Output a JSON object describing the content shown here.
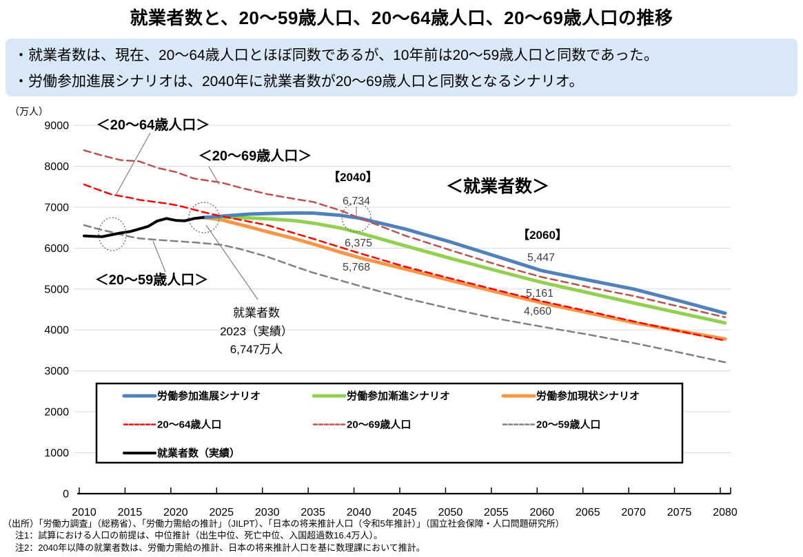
{
  "title": "就業者数と、20～59歳人口、20～64歳人口、20～69歳人口の推移",
  "callout": {
    "bullet1": "・就業者数は、現在、20～64歳人口とほぼ同数であるが、10年前は20～59歳人口と同数であった。",
    "bullet2": "・労働参加進展シナリオは、2040年に就業者数が20～69歳人口と同数となるシナリオ。"
  },
  "chart_data": {
    "type": "line",
    "unit_label": "（万人）",
    "ylim": [
      0,
      9000
    ],
    "ytick_step": 1000,
    "x_ticks": [
      2010,
      2015,
      2020,
      2025,
      2030,
      2035,
      2040,
      2045,
      2050,
      2055,
      2060,
      2065,
      2070,
      2075,
      2080
    ],
    "grid": true,
    "series": [
      {
        "id": "pop-20-59",
        "name": "20～59歳人口",
        "color": "#808080",
        "dash": true,
        "width": 2.5,
        "points": [
          [
            2010,
            6560
          ],
          [
            2011,
            6500
          ],
          [
            2012,
            6440
          ],
          [
            2013,
            6390
          ],
          [
            2014,
            6330
          ],
          [
            2015,
            6280
          ],
          [
            2016,
            6240
          ],
          [
            2017,
            6220
          ],
          [
            2018,
            6200
          ],
          [
            2019,
            6185
          ],
          [
            2020,
            6170
          ],
          [
            2022,
            6140
          ],
          [
            2025,
            6080
          ],
          [
            2027,
            5980
          ],
          [
            2030,
            5790
          ],
          [
            2033,
            5550
          ],
          [
            2035,
            5400
          ],
          [
            2040,
            5080
          ],
          [
            2045,
            4780
          ],
          [
            2050,
            4520
          ],
          [
            2055,
            4280
          ],
          [
            2060,
            4080
          ],
          [
            2065,
            3890
          ],
          [
            2070,
            3680
          ],
          [
            2075,
            3450
          ],
          [
            2080,
            3210
          ]
        ]
      },
      {
        "id": "scenario-genjo",
        "name": "労働参加現状シナリオ",
        "color": "#F79646",
        "dash": false,
        "width": 5,
        "points": [
          [
            2023,
            6747
          ],
          [
            2025,
            6690
          ],
          [
            2028,
            6520
          ],
          [
            2030,
            6400
          ],
          [
            2033,
            6230
          ],
          [
            2035,
            6100
          ],
          [
            2038,
            5900
          ],
          [
            2040,
            5768
          ],
          [
            2045,
            5490
          ],
          [
            2050,
            5210
          ],
          [
            2055,
            4930
          ],
          [
            2060,
            4660
          ],
          [
            2065,
            4420
          ],
          [
            2070,
            4180
          ],
          [
            2075,
            3975
          ],
          [
            2080,
            3780
          ]
        ]
      },
      {
        "id": "scenario-zenshin",
        "name": "労働参加漸進シナリオ",
        "color": "#92D050",
        "dash": false,
        "width": 5,
        "points": [
          [
            2023,
            6747
          ],
          [
            2025,
            6755
          ],
          [
            2028,
            6735
          ],
          [
            2030,
            6715
          ],
          [
            2033,
            6670
          ],
          [
            2035,
            6610
          ],
          [
            2038,
            6490
          ],
          [
            2040,
            6375
          ],
          [
            2045,
            6060
          ],
          [
            2050,
            5750
          ],
          [
            2055,
            5450
          ],
          [
            2060,
            5161
          ],
          [
            2065,
            4910
          ],
          [
            2070,
            4660
          ],
          [
            2075,
            4415
          ],
          [
            2080,
            4170
          ]
        ]
      },
      {
        "id": "scenario-shinten",
        "name": "労働参加進展シナリオ",
        "color": "#4F81BD",
        "dash": false,
        "width": 5,
        "points": [
          [
            2023,
            6747
          ],
          [
            2025,
            6780
          ],
          [
            2028,
            6830
          ],
          [
            2030,
            6845
          ],
          [
            2033,
            6860
          ],
          [
            2035,
            6855
          ],
          [
            2038,
            6800
          ],
          [
            2040,
            6734
          ],
          [
            2045,
            6470
          ],
          [
            2050,
            6150
          ],
          [
            2055,
            5800
          ],
          [
            2060,
            5447
          ],
          [
            2065,
            5220
          ],
          [
            2070,
            5000
          ],
          [
            2075,
            4710
          ],
          [
            2080,
            4410
          ]
        ]
      },
      {
        "id": "pop-20-64",
        "name": "20～64歳人口",
        "color": "#FF0000",
        "dash": true,
        "width": 2.5,
        "points": [
          [
            2010,
            7555
          ],
          [
            2011,
            7470
          ],
          [
            2012,
            7390
          ],
          [
            2013,
            7310
          ],
          [
            2014,
            7270
          ],
          [
            2015,
            7230
          ],
          [
            2016,
            7180
          ],
          [
            2017,
            7150
          ],
          [
            2018,
            7120
          ],
          [
            2019,
            7090
          ],
          [
            2020,
            7050
          ],
          [
            2021,
            7000
          ],
          [
            2022,
            6940
          ],
          [
            2023,
            6880
          ],
          [
            2025,
            6780
          ],
          [
            2030,
            6560
          ],
          [
            2035,
            6230
          ],
          [
            2040,
            5880
          ],
          [
            2045,
            5550
          ],
          [
            2050,
            5260
          ],
          [
            2055,
            4980
          ],
          [
            2060,
            4700
          ],
          [
            2065,
            4460
          ],
          [
            2070,
            4210
          ],
          [
            2075,
            3970
          ],
          [
            2080,
            3740
          ]
        ]
      },
      {
        "id": "pop-20-69",
        "name": "20～69歳人口",
        "color": "#C0504D",
        "dash": true,
        "width": 2.5,
        "points": [
          [
            2010,
            8390
          ],
          [
            2012,
            8260
          ],
          [
            2014,
            8150
          ],
          [
            2016,
            8120
          ],
          [
            2018,
            7960
          ],
          [
            2020,
            7860
          ],
          [
            2022,
            7700
          ],
          [
            2025,
            7600
          ],
          [
            2027,
            7480
          ],
          [
            2030,
            7320
          ],
          [
            2033,
            7200
          ],
          [
            2035,
            7130
          ],
          [
            2038,
            6920
          ],
          [
            2040,
            6740
          ],
          [
            2045,
            6310
          ],
          [
            2050,
            5950
          ],
          [
            2055,
            5600
          ],
          [
            2060,
            5290
          ],
          [
            2065,
            5050
          ],
          [
            2070,
            4830
          ],
          [
            2075,
            4570
          ],
          [
            2080,
            4310
          ]
        ]
      },
      {
        "id": "employed-actual",
        "name": "就業者数（実績）",
        "color": "#000000",
        "dash": false,
        "width": 4,
        "points": [
          [
            2010,
            6298
          ],
          [
            2011,
            6289
          ],
          [
            2012,
            6280
          ],
          [
            2013,
            6326
          ],
          [
            2014,
            6371
          ],
          [
            2015,
            6402
          ],
          [
            2016,
            6465
          ],
          [
            2017,
            6530
          ],
          [
            2018,
            6664
          ],
          [
            2019,
            6724
          ],
          [
            2020,
            6676
          ],
          [
            2021,
            6667
          ],
          [
            2022,
            6723
          ],
          [
            2023,
            6747
          ]
        ]
      }
    ]
  },
  "annotations": {
    "bracket_2064": "＜20～64歳人口＞",
    "bracket_2069": "＜20～69歳人口＞",
    "bracket_2059": "＜20～59歳人口＞",
    "bracket_employed": "＜就業者数＞",
    "y2040": {
      "title": "【2040】",
      "values": [
        "6,734",
        "6,375",
        "5,768"
      ]
    },
    "y2060": {
      "title": "【2060】",
      "values": [
        "5,447",
        "5,161",
        "4,660"
      ]
    },
    "employed_2023": {
      "lines": [
        "就業者数",
        "2023（実績）",
        "6,747万人"
      ]
    }
  },
  "legend": {
    "items": [
      {
        "label": "労働参加進展シナリオ",
        "color": "#4F81BD",
        "dash": false,
        "width": 5
      },
      {
        "label": "労働参加漸進シナリオ",
        "color": "#92D050",
        "dash": false,
        "width": 5
      },
      {
        "label": "労働参加現状シナリオ",
        "color": "#F79646",
        "dash": false,
        "width": 5
      },
      {
        "label": "20～64歳人口",
        "color": "#FF0000",
        "dash": true,
        "width": 2.5
      },
      {
        "label": "20～69歳人口",
        "color": "#C0504D",
        "dash": true,
        "width": 2.5
      },
      {
        "label": "20～59歳人口",
        "color": "#808080",
        "dash": true,
        "width": 2.5
      },
      {
        "label": "就業者数（実績）",
        "color": "#000000",
        "dash": false,
        "width": 4
      }
    ]
  },
  "footer": {
    "source": "（出所）「労働力調査」（総務省）、「労働力需給の推計」（JILPT）、「日本の将来推計人口（令和5年推計）」（国立社会保障・人口問題研究所）",
    "note1": "注1：試算における人口の前提は、中位推計（出生中位、死亡中位、入国超過数16.4万人）。",
    "note2": "注2：2040年以降の就業者数は、労働力需給の推計、日本の将来推計人口を基に数理課において推計。"
  }
}
